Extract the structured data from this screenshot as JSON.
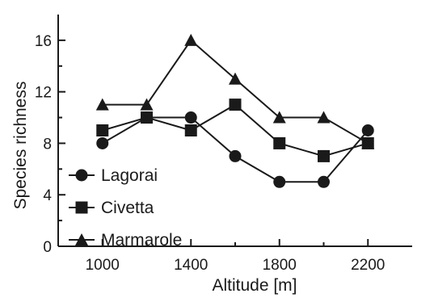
{
  "chart_data": {
    "type": "line",
    "xlabel": "Altitude [m]",
    "ylabel": "Species richness",
    "x": [
      1000,
      1200,
      1400,
      1600,
      1800,
      2000,
      2200
    ],
    "xlim": [
      800,
      2400
    ],
    "ylim": [
      0,
      18
    ],
    "x_ticks": [
      1000,
      1400,
      1800,
      2200
    ],
    "x_minor_ticks": [
      1200,
      1600,
      2000
    ],
    "y_ticks": [
      0,
      4,
      8,
      12,
      16
    ],
    "y_minor_ticks": [
      2,
      6,
      10,
      14
    ],
    "grid": false,
    "legend_position": "bottom-left",
    "series": [
      {
        "name": "Lagorai",
        "marker": "circle",
        "values": [
          8,
          10,
          10,
          7,
          5,
          5,
          9
        ]
      },
      {
        "name": "Civetta",
        "marker": "square",
        "values": [
          9,
          10,
          9,
          11,
          8,
          7,
          8
        ]
      },
      {
        "name": "Marmarole",
        "marker": "triangle",
        "values": [
          11,
          11,
          16,
          13,
          10,
          10,
          8
        ]
      }
    ],
    "colors": {
      "line": "#1a1a1a",
      "marker": "#1a1a1a",
      "background": "#ffffff"
    }
  }
}
